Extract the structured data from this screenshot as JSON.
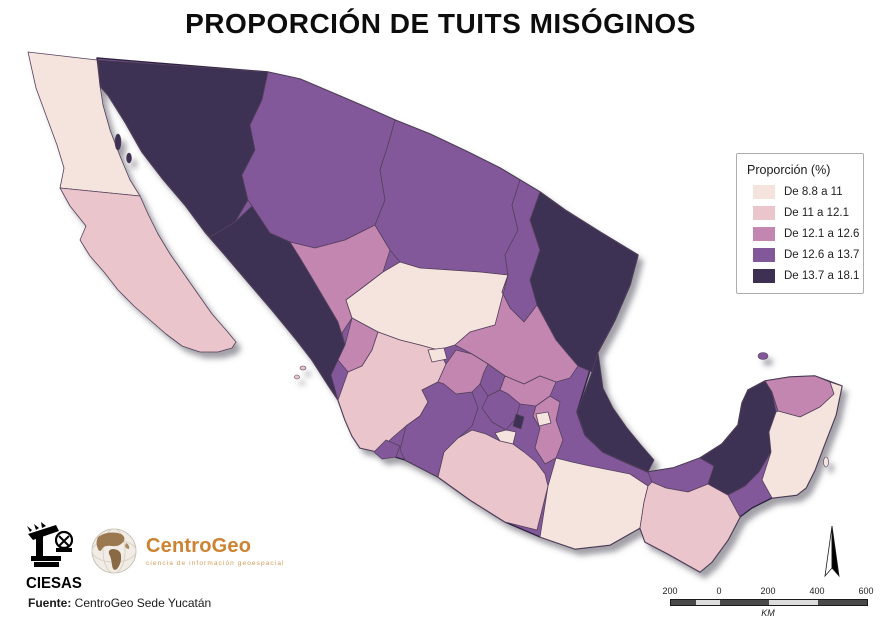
{
  "title": "PROPORCIÓN DE TUITS MISÓGINOS",
  "legend": {
    "title": "Proporción (%)",
    "items": [
      {
        "label": "De 8.8 a 11",
        "color": "#f5e4de"
      },
      {
        "label": "De 11 a 12.1",
        "color": "#eac5cb"
      },
      {
        "label": "De 12.1 a 12.6",
        "color": "#c286b1"
      },
      {
        "label": "De 12.6 a 13.7",
        "color": "#82589a"
      },
      {
        "label": "De 13.7 a 18.1",
        "color": "#3e3052"
      }
    ]
  },
  "map": {
    "states": [
      {
        "name": "Baja California",
        "class": 1
      },
      {
        "name": "Baja California Sur",
        "class": 2
      },
      {
        "name": "Sonora",
        "class": 5
      },
      {
        "name": "Chihuahua",
        "class": 4
      },
      {
        "name": "Sinaloa",
        "class": 5
      },
      {
        "name": "Durango",
        "class": 3
      },
      {
        "name": "Coahuila",
        "class": 4
      },
      {
        "name": "Nuevo León",
        "class": 4
      },
      {
        "name": "Tamaulipas",
        "class": 5
      },
      {
        "name": "Zacatecas",
        "class": 1
      },
      {
        "name": "San Luis Potosí",
        "class": 3
      },
      {
        "name": "Nayarit",
        "class": 3
      },
      {
        "name": "Jalisco",
        "class": 2
      },
      {
        "name": "Michoacán",
        "class": 4
      },
      {
        "name": "Colima",
        "class": 4
      },
      {
        "name": "Aguascalientes",
        "class": 1
      },
      {
        "name": "Guanajuato",
        "class": 3
      },
      {
        "name": "Querétaro",
        "class": 4
      },
      {
        "name": "Hidalgo",
        "class": 3
      },
      {
        "name": "Puebla",
        "class": 3
      },
      {
        "name": "Veracruz",
        "class": 5
      },
      {
        "name": "Estado de México",
        "class": 4
      },
      {
        "name": "Ciudad de México",
        "class": 5
      },
      {
        "name": "Morelos",
        "class": 1
      },
      {
        "name": "Tlaxcala",
        "class": 1
      },
      {
        "name": "Guerrero",
        "class": 2
      },
      {
        "name": "Oaxaca",
        "class": 1
      },
      {
        "name": "Tabasco",
        "class": 4
      },
      {
        "name": "Chiapas",
        "class": 2
      },
      {
        "name": "Campeche",
        "class": 5
      },
      {
        "name": "Yucatán",
        "class": 3
      },
      {
        "name": "Quintana Roo",
        "class": 1
      }
    ]
  },
  "logos": {
    "ciesas": {
      "label": "CIESAS"
    },
    "centrogeo": {
      "label": "CentroGeo",
      "tagline": "ciencia de información geoespacial"
    }
  },
  "source": {
    "prefix": "Fuente:",
    "text": " CentroGeo Sede Yucatán"
  },
  "scalebar": {
    "labels": [
      "200",
      "0",
      "200",
      "400",
      "600"
    ],
    "unit": "KM"
  }
}
